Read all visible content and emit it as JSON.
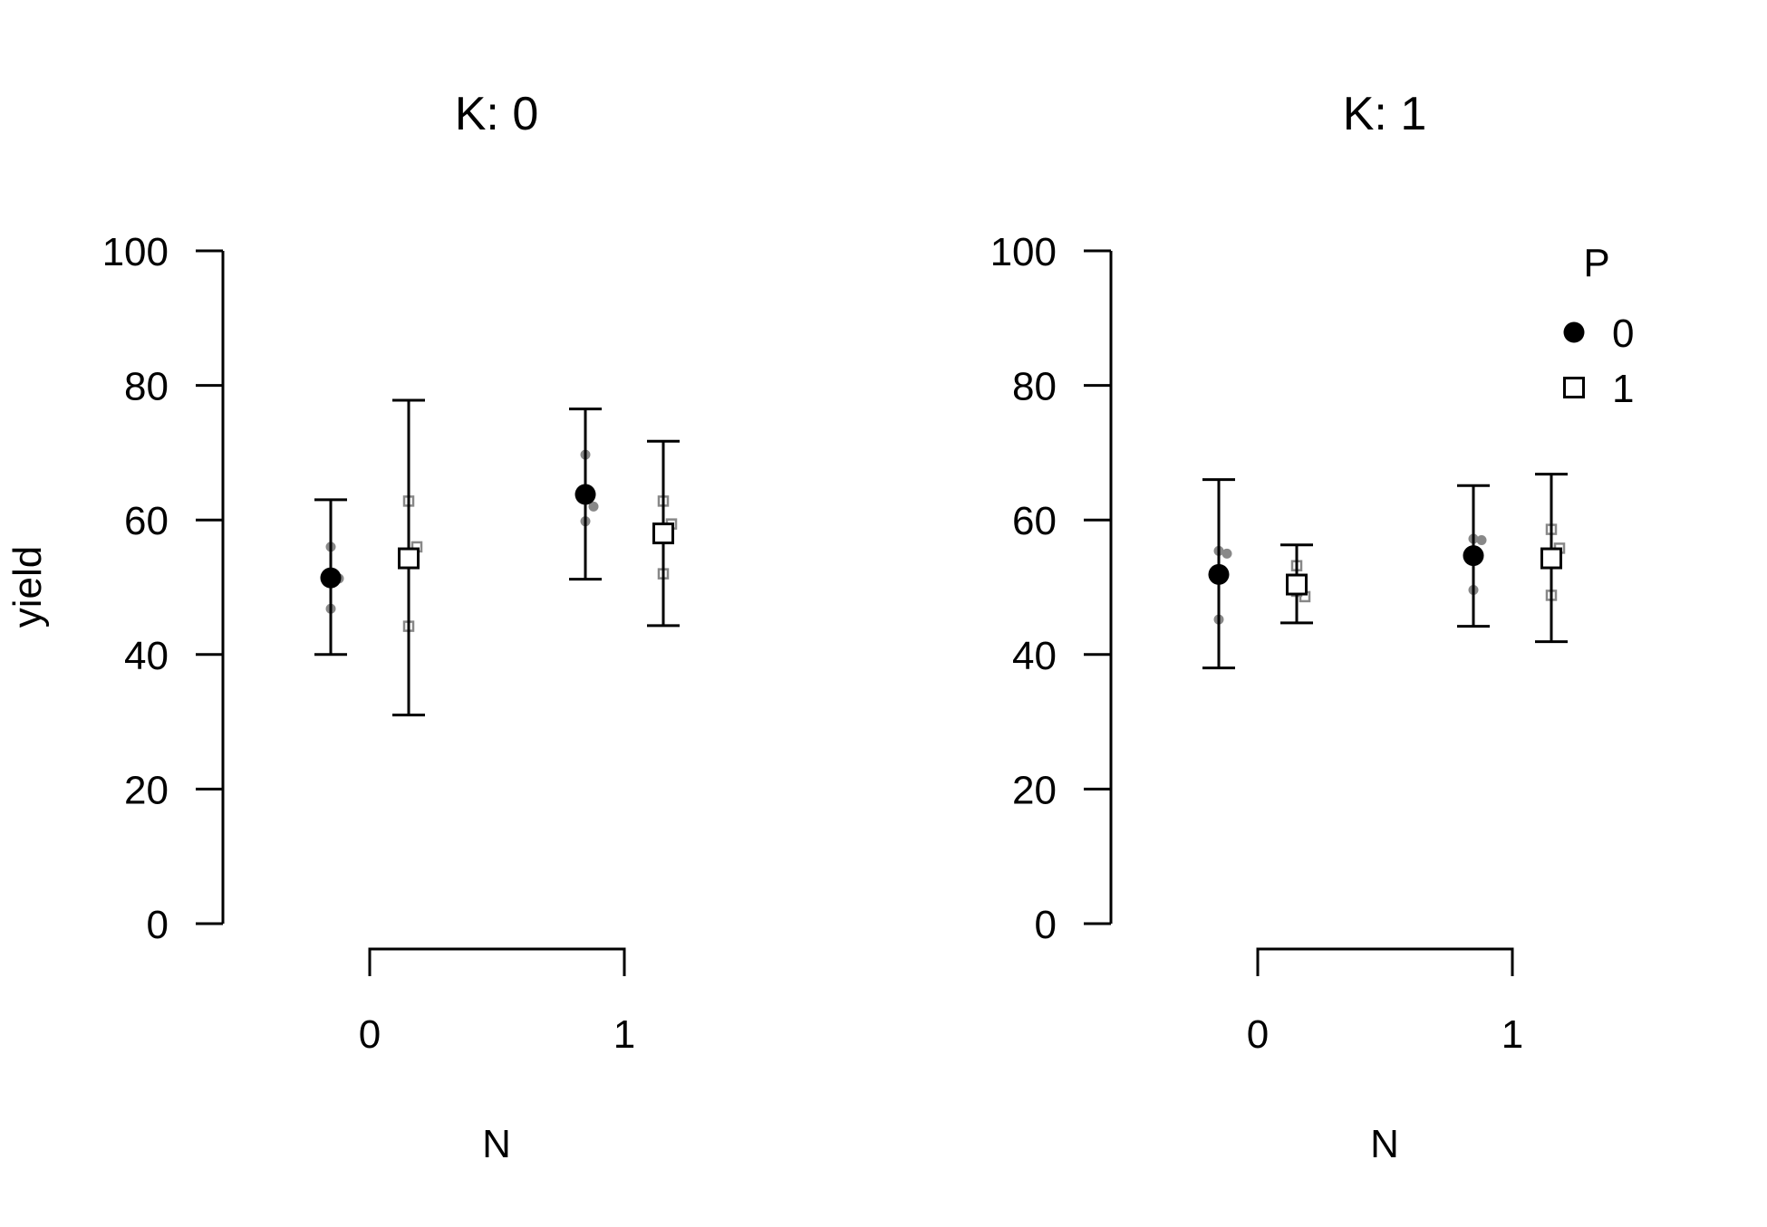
{
  "colors": {
    "background": "#ffffff",
    "foreground": "#000000",
    "raw_points": "#888888"
  },
  "chart_data": [
    {
      "type": "scatter",
      "title": "K: 0",
      "xlabel": "N",
      "ylabel": "yield",
      "ylim": [
        0,
        100
      ],
      "yticks": [
        0,
        20,
        40,
        60,
        80,
        100
      ],
      "categories": [
        "0",
        "1"
      ],
      "grid": false,
      "legend": null,
      "series": [
        {
          "name": "0",
          "marker": "filled-circle",
          "means": [
            51.4,
            63.8
          ],
          "ci_low": [
            40.0,
            51.2
          ],
          "ci_high": [
            63.0,
            76.5
          ],
          "raw": [
            [
              56.0,
              46.8,
              51.3
            ],
            [
              69.7,
              59.8,
              62.0
            ]
          ]
        },
        {
          "name": "1",
          "marker": "open-square",
          "means": [
            54.3,
            58.0
          ],
          "ci_low": [
            31.0,
            44.3
          ],
          "ci_high": [
            77.8,
            71.7
          ],
          "raw": [
            [
              62.8,
              44.2,
              56.0
            ],
            [
              62.8,
              52.0,
              59.4
            ]
          ]
        }
      ]
    },
    {
      "type": "scatter",
      "title": "K: 1",
      "xlabel": "N",
      "ylabel": "",
      "ylim": [
        0,
        100
      ],
      "yticks": [
        0,
        20,
        40,
        60,
        80,
        100
      ],
      "categories": [
        "0",
        "1"
      ],
      "grid": false,
      "legend": {
        "title": "P",
        "placement": "top-right",
        "entries": [
          {
            "label": "0",
            "marker": "filled-circle"
          },
          {
            "label": "1",
            "marker": "open-square"
          }
        ]
      },
      "series": [
        {
          "name": "0",
          "marker": "filled-circle",
          "means": [
            51.9,
            54.7
          ],
          "ci_low": [
            38.0,
            44.2
          ],
          "ci_high": [
            66.0,
            65.1
          ],
          "raw": [
            [
              55.4,
              45.2,
              55.0
            ],
            [
              57.2,
              49.6,
              57.0
            ]
          ]
        },
        {
          "name": "1",
          "marker": "open-square",
          "means": [
            50.4,
            54.3
          ],
          "ci_low": [
            44.7,
            41.9
          ],
          "ci_high": [
            56.3,
            66.8
          ],
          "raw": [
            [
              53.2,
              49.4,
              48.6
            ],
            [
              58.6,
              48.8,
              55.8
            ]
          ]
        }
      ]
    }
  ]
}
